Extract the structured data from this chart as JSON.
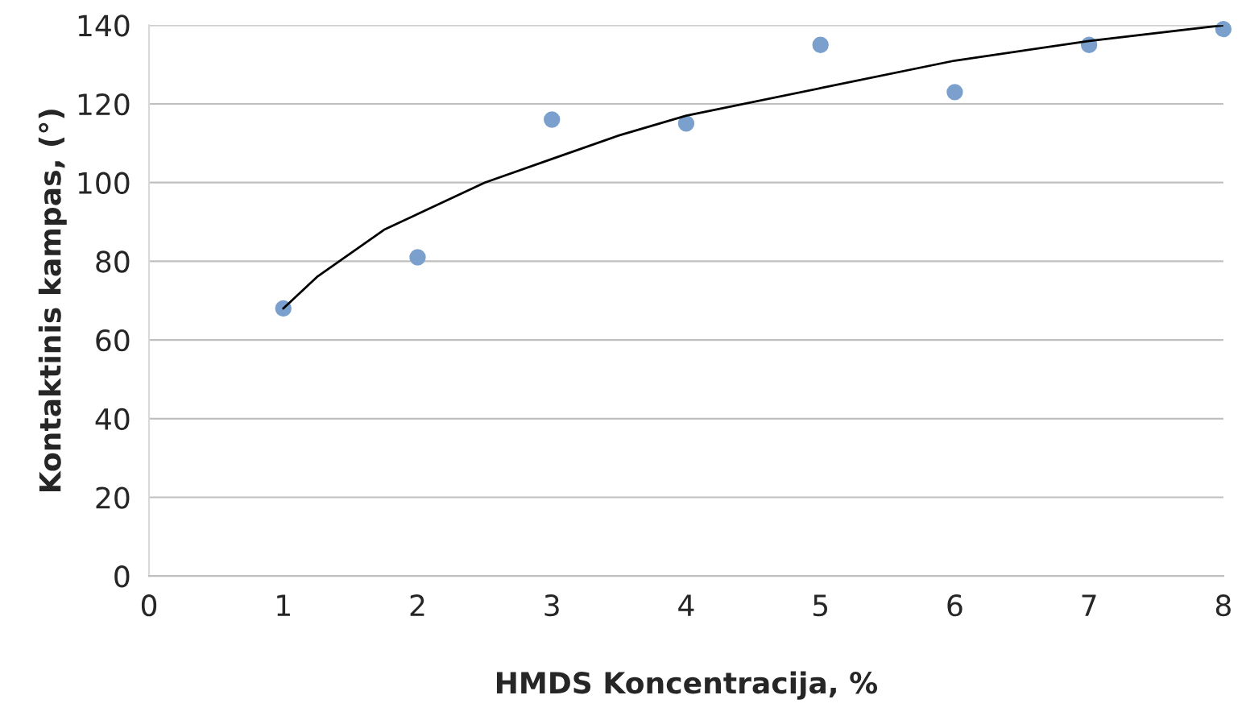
{
  "chart_data": {
    "type": "scatter",
    "xlabel": "HMDS Koncentracija, %",
    "ylabel": "Kontaktinis kampas, (°)",
    "xlim": [
      0,
      8
    ],
    "xticks": [
      0,
      1,
      2,
      3,
      4,
      5,
      6,
      7,
      8
    ],
    "ylim": [
      0,
      140
    ],
    "yticks": [
      0,
      20,
      40,
      60,
      80,
      100,
      120,
      140
    ],
    "grid": "y",
    "legend": false,
    "series": [
      {
        "marker": "circle",
        "color": "#7ba0cd",
        "x": [
          1,
          2,
          3,
          4,
          5,
          6,
          7,
          8
        ],
        "values": [
          68,
          81,
          116,
          115,
          135,
          123,
          135,
          139
        ]
      },
      {
        "type": "line",
        "color": "#000000",
        "line_style": "solid",
        "x": [
          1,
          1.25,
          1.5,
          1.75,
          2,
          2.5,
          3,
          3.5,
          4,
          5,
          6,
          7,
          8
        ],
        "values": [
          68,
          76,
          82,
          88,
          92,
          100,
          106,
          112,
          117,
          124,
          131,
          136,
          140
        ]
      }
    ]
  }
}
